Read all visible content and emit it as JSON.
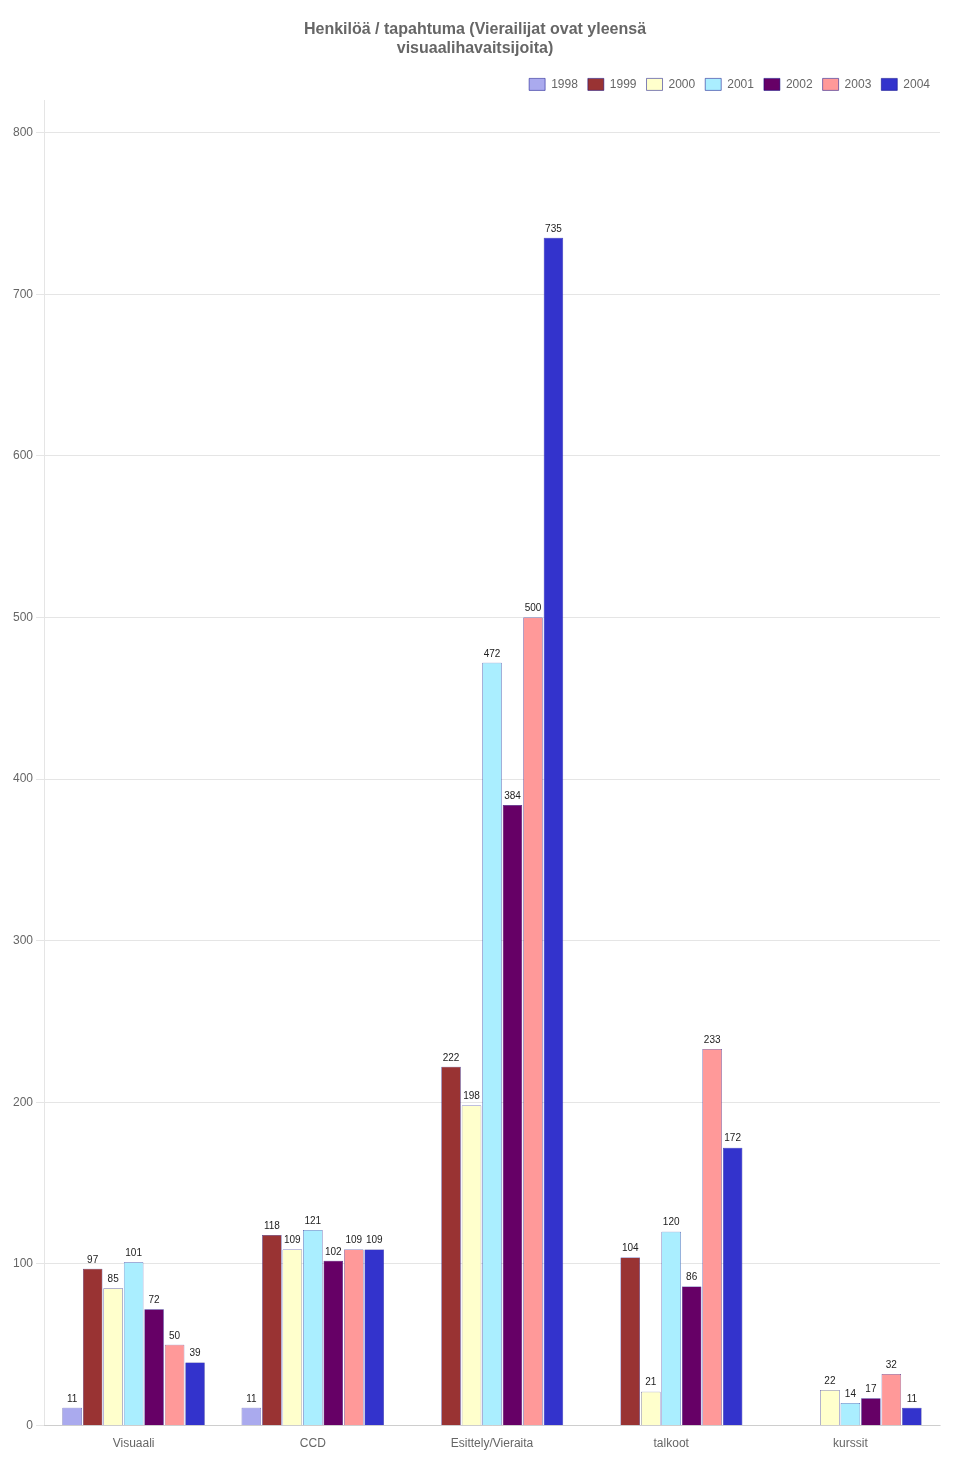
{
  "chart_data": {
    "type": "bar",
    "title": "Henkilöä / tapahtuma (Vierailijat ovat yleensä\nvisuaalihavaitsijoita)",
    "categories": [
      "Visuaali",
      "CCD",
      "Esittely/Vieraita",
      "talkoot",
      "kurssit"
    ],
    "series": [
      {
        "name": "1998",
        "color": "#aaaaee",
        "values": [
          11,
          11,
          0,
          0,
          0
        ],
        "value_labels": [
          "11",
          "11",
          null,
          null,
          null
        ]
      },
      {
        "name": "1999",
        "color": "#993333",
        "values": [
          97,
          118,
          222,
          104,
          0
        ],
        "value_labels": [
          "97",
          "118",
          "222",
          "104",
          null
        ]
      },
      {
        "name": "2000",
        "color": "#ffffcc",
        "values": [
          85,
          109,
          198,
          21,
          22
        ],
        "value_labels": [
          "85",
          "109",
          "198",
          "21",
          "22"
        ]
      },
      {
        "name": "2001",
        "color": "#aaeeff",
        "values": [
          101,
          121,
          472,
          120,
          14
        ],
        "value_labels": [
          "101",
          "121",
          "472",
          "120",
          "14"
        ]
      },
      {
        "name": "2002",
        "color": "#660066",
        "values": [
          72,
          102,
          384,
          86,
          17
        ],
        "value_labels": [
          "72",
          "102",
          "384",
          "86",
          "17"
        ]
      },
      {
        "name": "2003",
        "color": "#ff9999",
        "values": [
          50,
          109,
          500,
          233,
          32
        ],
        "value_labels": [
          "50",
          "109",
          "500",
          "233",
          "32"
        ]
      },
      {
        "name": "2004",
        "color": "#3333cc",
        "values": [
          39,
          109,
          735,
          172,
          11
        ],
        "value_labels": [
          "39",
          "109",
          "735",
          "172",
          "11"
        ]
      }
    ],
    "ylim": [
      0,
      820
    ],
    "yticks": [
      0,
      100,
      200,
      300,
      400,
      500,
      600,
      700,
      800
    ],
    "grid": true,
    "legend": "upper right",
    "data_labels": true
  }
}
